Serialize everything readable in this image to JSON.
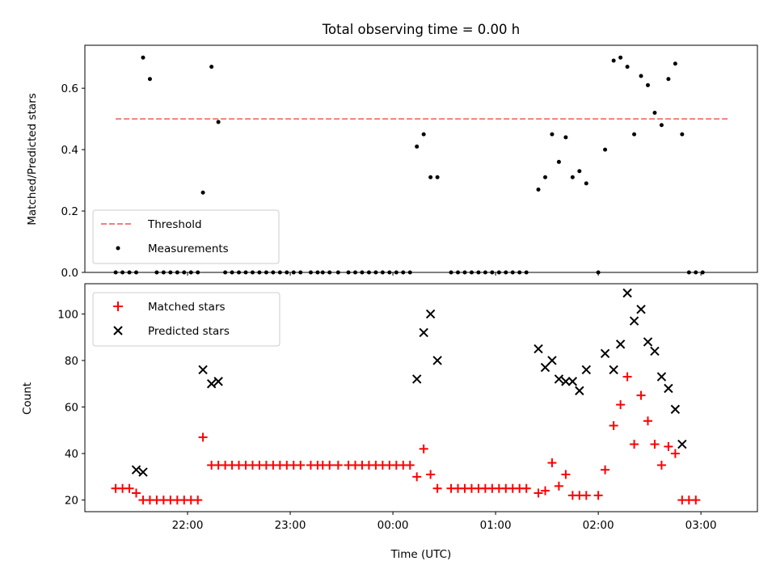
{
  "chart_data": [
    {
      "type": "scatter",
      "title": "Total observing time = 0.00 h",
      "xlabel": "",
      "ylabel": "Matched/Predicted stars",
      "ylim": [
        0,
        0.74
      ],
      "yticks": [
        0.0,
        0.2,
        0.4,
        0.6
      ],
      "ytick_labels": [
        "0.0",
        "0.2",
        "0.4",
        "0.6"
      ],
      "xlim": [
        "21:00",
        "03:33"
      ],
      "x_tick_times": [
        "22:00",
        "23:00",
        "00:00",
        "01:00",
        "02:00",
        "03:00"
      ],
      "grid": false,
      "legend_position": "lower-left",
      "legend": [
        "Threshold",
        "Measurements"
      ],
      "threshold": {
        "name": "Threshold",
        "value": 0.5,
        "x_range": [
          "21:18",
          "03:16"
        ],
        "color": "#f08080",
        "style": "dashed"
      },
      "series": [
        {
          "name": "Measurements",
          "color": "#000000",
          "marker": "dot",
          "points": [
            [
              "21:18",
              0.0
            ],
            [
              "21:22",
              0.0
            ],
            [
              "21:26",
              0.0
            ],
            [
              "21:30",
              0.0
            ],
            [
              "21:34",
              0.7
            ],
            [
              "21:38",
              0.63
            ],
            [
              "21:42",
              0.0
            ],
            [
              "21:46",
              0.0
            ],
            [
              "21:50",
              0.0
            ],
            [
              "21:54",
              0.0
            ],
            [
              "21:58",
              0.0
            ],
            [
              "22:02",
              0.0
            ],
            [
              "22:06",
              0.0
            ],
            [
              "22:09",
              0.26
            ],
            [
              "22:14",
              0.67
            ],
            [
              "22:18",
              0.49
            ],
            [
              "22:22",
              0.0
            ],
            [
              "22:26",
              0.0
            ],
            [
              "22:30",
              0.0
            ],
            [
              "22:34",
              0.0
            ],
            [
              "22:38",
              0.0
            ],
            [
              "22:42",
              0.0
            ],
            [
              "22:46",
              0.0
            ],
            [
              "22:50",
              0.0
            ],
            [
              "22:54",
              0.0
            ],
            [
              "22:58",
              0.0
            ],
            [
              "23:02",
              0.0
            ],
            [
              "23:06",
              0.0
            ],
            [
              "23:12",
              0.0
            ],
            [
              "23:16",
              0.0
            ],
            [
              "23:19",
              0.0
            ],
            [
              "23:23",
              0.0
            ],
            [
              "23:28",
              0.0
            ],
            [
              "23:34",
              0.0
            ],
            [
              "23:38",
              0.0
            ],
            [
              "23:42",
              0.0
            ],
            [
              "23:46",
              0.0
            ],
            [
              "23:50",
              0.0
            ],
            [
              "23:54",
              0.0
            ],
            [
              "23:58",
              0.0
            ],
            [
              "00:02",
              0.0
            ],
            [
              "00:06",
              0.0
            ],
            [
              "00:10",
              0.0
            ],
            [
              "00:14",
              0.41
            ],
            [
              "00:18",
              0.45
            ],
            [
              "00:22",
              0.31
            ],
            [
              "00:26",
              0.31
            ],
            [
              "00:34",
              0.0
            ],
            [
              "00:38",
              0.0
            ],
            [
              "00:42",
              0.0
            ],
            [
              "00:46",
              0.0
            ],
            [
              "00:50",
              0.0
            ],
            [
              "00:54",
              0.0
            ],
            [
              "00:58",
              0.0
            ],
            [
              "01:02",
              0.0
            ],
            [
              "01:06",
              0.0
            ],
            [
              "01:10",
              0.0
            ],
            [
              "01:14",
              0.0
            ],
            [
              "01:18",
              0.0
            ],
            [
              "01:25",
              0.27
            ],
            [
              "01:29",
              0.31
            ],
            [
              "01:33",
              0.45
            ],
            [
              "01:37",
              0.36
            ],
            [
              "01:41",
              0.44
            ],
            [
              "01:45",
              0.31
            ],
            [
              "01:49",
              0.33
            ],
            [
              "01:53",
              0.29
            ],
            [
              "02:00",
              0.0
            ],
            [
              "02:04",
              0.4
            ],
            [
              "02:09",
              0.69
            ],
            [
              "02:13",
              0.7
            ],
            [
              "02:17",
              0.67
            ],
            [
              "02:21",
              0.45
            ],
            [
              "02:25",
              0.64
            ],
            [
              "02:29",
              0.61
            ],
            [
              "02:33",
              0.52
            ],
            [
              "02:37",
              0.48
            ],
            [
              "02:41",
              0.63
            ],
            [
              "02:45",
              0.68
            ],
            [
              "02:49",
              0.45
            ],
            [
              "02:53",
              0.0
            ],
            [
              "02:57",
              0.0
            ],
            [
              "03:01",
              0.0
            ]
          ]
        }
      ]
    },
    {
      "type": "scatter",
      "title": "",
      "xlabel": "Time (UTC)",
      "ylabel": "Count",
      "ylim": [
        15,
        113
      ],
      "yticks": [
        20,
        40,
        60,
        80,
        100
      ],
      "ytick_labels": [
        "20",
        "40",
        "60",
        "80",
        "100"
      ],
      "xlim": [
        "21:00",
        "03:33"
      ],
      "x_tick_times": [
        "22:00",
        "23:00",
        "00:00",
        "01:00",
        "02:00",
        "03:00"
      ],
      "xtick_labels": [
        "22:00",
        "23:00",
        "00:00",
        "01:00",
        "02:00",
        "03:00"
      ],
      "grid": false,
      "legend_position": "upper-left",
      "legend": [
        "Matched stars",
        "Predicted stars"
      ],
      "series": [
        {
          "name": "Matched stars",
          "color": "#ff0000",
          "marker": "plus",
          "points": [
            [
              "21:18",
              25
            ],
            [
              "21:22",
              25
            ],
            [
              "21:26",
              25
            ],
            [
              "21:30",
              23
            ],
            [
              "21:34",
              20
            ],
            [
              "21:38",
              20
            ],
            [
              "21:42",
              20
            ],
            [
              "21:46",
              20
            ],
            [
              "21:50",
              20
            ],
            [
              "21:54",
              20
            ],
            [
              "21:58",
              20
            ],
            [
              "22:02",
              20
            ],
            [
              "22:06",
              20
            ],
            [
              "22:09",
              47
            ],
            [
              "22:14",
              35
            ],
            [
              "22:18",
              35
            ],
            [
              "22:22",
              35
            ],
            [
              "22:26",
              35
            ],
            [
              "22:30",
              35
            ],
            [
              "22:34",
              35
            ],
            [
              "22:38",
              35
            ],
            [
              "22:42",
              35
            ],
            [
              "22:46",
              35
            ],
            [
              "22:50",
              35
            ],
            [
              "22:54",
              35
            ],
            [
              "22:58",
              35
            ],
            [
              "23:02",
              35
            ],
            [
              "23:06",
              35
            ],
            [
              "23:12",
              35
            ],
            [
              "23:16",
              35
            ],
            [
              "23:19",
              35
            ],
            [
              "23:23",
              35
            ],
            [
              "23:28",
              35
            ],
            [
              "23:34",
              35
            ],
            [
              "23:38",
              35
            ],
            [
              "23:42",
              35
            ],
            [
              "23:46",
              35
            ],
            [
              "23:50",
              35
            ],
            [
              "23:54",
              35
            ],
            [
              "23:58",
              35
            ],
            [
              "00:02",
              35
            ],
            [
              "00:06",
              35
            ],
            [
              "00:10",
              35
            ],
            [
              "00:14",
              30
            ],
            [
              "00:18",
              42
            ],
            [
              "00:22",
              31
            ],
            [
              "00:26",
              25
            ],
            [
              "00:34",
              25
            ],
            [
              "00:38",
              25
            ],
            [
              "00:42",
              25
            ],
            [
              "00:46",
              25
            ],
            [
              "00:50",
              25
            ],
            [
              "00:54",
              25
            ],
            [
              "00:58",
              25
            ],
            [
              "01:02",
              25
            ],
            [
              "01:06",
              25
            ],
            [
              "01:10",
              25
            ],
            [
              "01:14",
              25
            ],
            [
              "01:18",
              25
            ],
            [
              "01:25",
              23
            ],
            [
              "01:29",
              24
            ],
            [
              "01:33",
              36
            ],
            [
              "01:37",
              26
            ],
            [
              "01:41",
              31
            ],
            [
              "01:45",
              22
            ],
            [
              "01:49",
              22
            ],
            [
              "01:53",
              22
            ],
            [
              "02:00",
              22
            ],
            [
              "02:04",
              33
            ],
            [
              "02:09",
              52
            ],
            [
              "02:13",
              61
            ],
            [
              "02:17",
              73
            ],
            [
              "02:21",
              44
            ],
            [
              "02:25",
              65
            ],
            [
              "02:29",
              54
            ],
            [
              "02:33",
              44
            ],
            [
              "02:37",
              35
            ],
            [
              "02:41",
              43
            ],
            [
              "02:45",
              40
            ],
            [
              "02:49",
              20
            ],
            [
              "02:53",
              20
            ],
            [
              "02:57",
              20
            ]
          ]
        },
        {
          "name": "Predicted stars",
          "color": "#000000",
          "marker": "x",
          "points": [
            [
              "21:30",
              33
            ],
            [
              "21:34",
              32
            ],
            [
              "22:09",
              76
            ],
            [
              "22:14",
              70
            ],
            [
              "22:18",
              71
            ],
            [
              "00:14",
              72
            ],
            [
              "00:18",
              92
            ],
            [
              "00:22",
              100
            ],
            [
              "00:26",
              80
            ],
            [
              "01:25",
              85
            ],
            [
              "01:29",
              77
            ],
            [
              "01:33",
              80
            ],
            [
              "01:37",
              72
            ],
            [
              "01:41",
              71
            ],
            [
              "01:45",
              71
            ],
            [
              "01:49",
              67
            ],
            [
              "01:53",
              76
            ],
            [
              "02:04",
              83
            ],
            [
              "02:09",
              76
            ],
            [
              "02:13",
              87
            ],
            [
              "02:17",
              109
            ],
            [
              "02:21",
              97
            ],
            [
              "02:25",
              102
            ],
            [
              "02:29",
              88
            ],
            [
              "02:33",
              84
            ],
            [
              "02:37",
              73
            ],
            [
              "02:41",
              68
            ],
            [
              "02:45",
              59
            ],
            [
              "02:49",
              44
            ]
          ]
        }
      ]
    }
  ]
}
